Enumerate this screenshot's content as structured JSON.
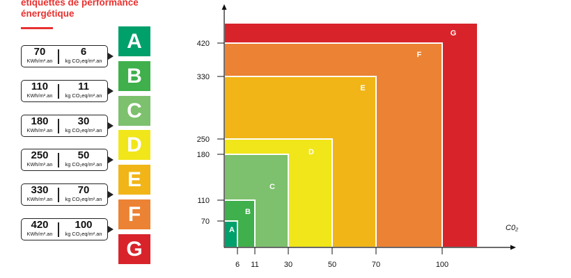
{
  "heading": {
    "line1": "étiquettes de performance",
    "line2": "énergétique"
  },
  "units": {
    "energy": "KWh/m².an",
    "ghg": "kg CO₂eq/m².an"
  },
  "classes": [
    {
      "letter": "A",
      "energy": "70",
      "ghg": "6",
      "color": "#00a06b"
    },
    {
      "letter": "B",
      "energy": "110",
      "ghg": "11",
      "color": "#3fb04b"
    },
    {
      "letter": "C",
      "energy": "180",
      "ghg": "30",
      "color": "#7dc06d"
    },
    {
      "letter": "D",
      "energy": "250",
      "ghg": "50",
      "color": "#f1e619"
    },
    {
      "letter": "E",
      "energy": "330",
      "ghg": "70",
      "color": "#f1b517"
    },
    {
      "letter": "F",
      "energy": "420",
      "ghg": "100",
      "color": "#ec8233"
    },
    {
      "letter": "G",
      "energy": "",
      "ghg": "",
      "color": "#d9232a"
    }
  ],
  "chart_data": {
    "type": "nested-rectangles",
    "x_label": "C0₂",
    "x_ticks": [
      "6",
      "11",
      "30",
      "50",
      "70",
      "100"
    ],
    "y_ticks": [
      "70",
      "110",
      "180",
      "250",
      "330",
      "420"
    ],
    "zones": [
      {
        "label": "A",
        "x_max": 6,
        "y_max": 70,
        "color": "#00a06b"
      },
      {
        "label": "B",
        "x_max": 11,
        "y_max": 110,
        "color": "#3fb04b"
      },
      {
        "label": "C",
        "x_max": 30,
        "y_max": 180,
        "color": "#7dc06d"
      },
      {
        "label": "D",
        "x_max": 50,
        "y_max": 250,
        "color": "#f1e619"
      },
      {
        "label": "E",
        "x_max": 70,
        "y_max": 330,
        "color": "#f1b517"
      },
      {
        "label": "F",
        "x_max": 100,
        "y_max": 420,
        "color": "#ec8233"
      },
      {
        "label": "G",
        "x_max": null,
        "y_max": null,
        "color": "#d9232a"
      }
    ]
  }
}
